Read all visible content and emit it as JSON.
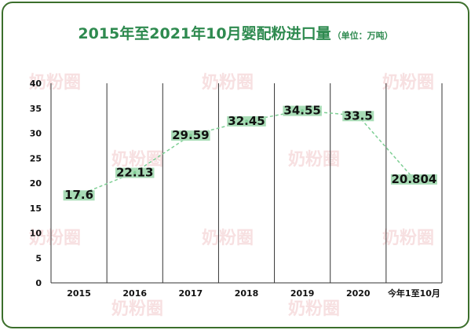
{
  "title": "2015年至2021年10月婴配粉进口量",
  "unit": "（单位：万吨）",
  "watermark": "奶粉圈",
  "colors": {
    "frame": "#3c6f2c",
    "title": "#2e8a4f",
    "line": "#7fcf95",
    "label_bg": "#a8dcb6",
    "grid": "#333333",
    "axis_text": "#111111"
  },
  "chart_data": {
    "type": "line",
    "title": "2015年至2021年10月婴配粉进口量",
    "subtitle": "（单位：万吨）",
    "categories": [
      "2015",
      "2016",
      "2017",
      "2018",
      "2019",
      "2020",
      "今年1至10月"
    ],
    "values": [
      17.6,
      22.13,
      29.59,
      32.45,
      34.55,
      33.5,
      20.804
    ],
    "value_labels": [
      "17.6",
      "22.13",
      "29.59",
      "32.45",
      "34.55",
      "33.5",
      "20.804"
    ],
    "ylim": [
      0,
      40
    ],
    "yticks": [
      0,
      5,
      10,
      15,
      20,
      25,
      30,
      35,
      40
    ],
    "line_style": "dashed",
    "grid": "vertical category separators",
    "legend": "none"
  }
}
